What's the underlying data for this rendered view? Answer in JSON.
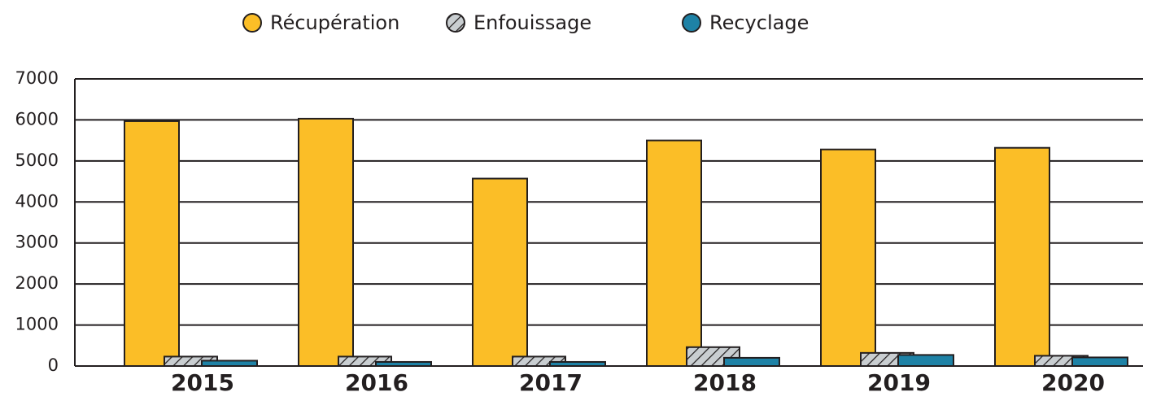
{
  "chart_data": {
    "type": "bar",
    "categories": [
      "2015",
      "2016",
      "2017",
      "2018",
      "2019",
      "2020"
    ],
    "series": [
      {
        "name": "Récupération",
        "color": "#fbbe27",
        "values": [
          5970,
          6030,
          4570,
          5500,
          5280,
          5320
        ]
      },
      {
        "name": "Enfouissage",
        "color": "#c9ced1",
        "hatch": true,
        "values": [
          230,
          230,
          230,
          460,
          320,
          250
        ]
      },
      {
        "name": "Recyclage",
        "color": "#1e82a6",
        "values": [
          130,
          100,
          100,
          200,
          270,
          210
        ]
      }
    ],
    "ylim": [
      0,
      7000
    ],
    "yticks": [
      0,
      1000,
      2000,
      3000,
      4000,
      5000,
      6000,
      7000
    ],
    "grid": true
  }
}
